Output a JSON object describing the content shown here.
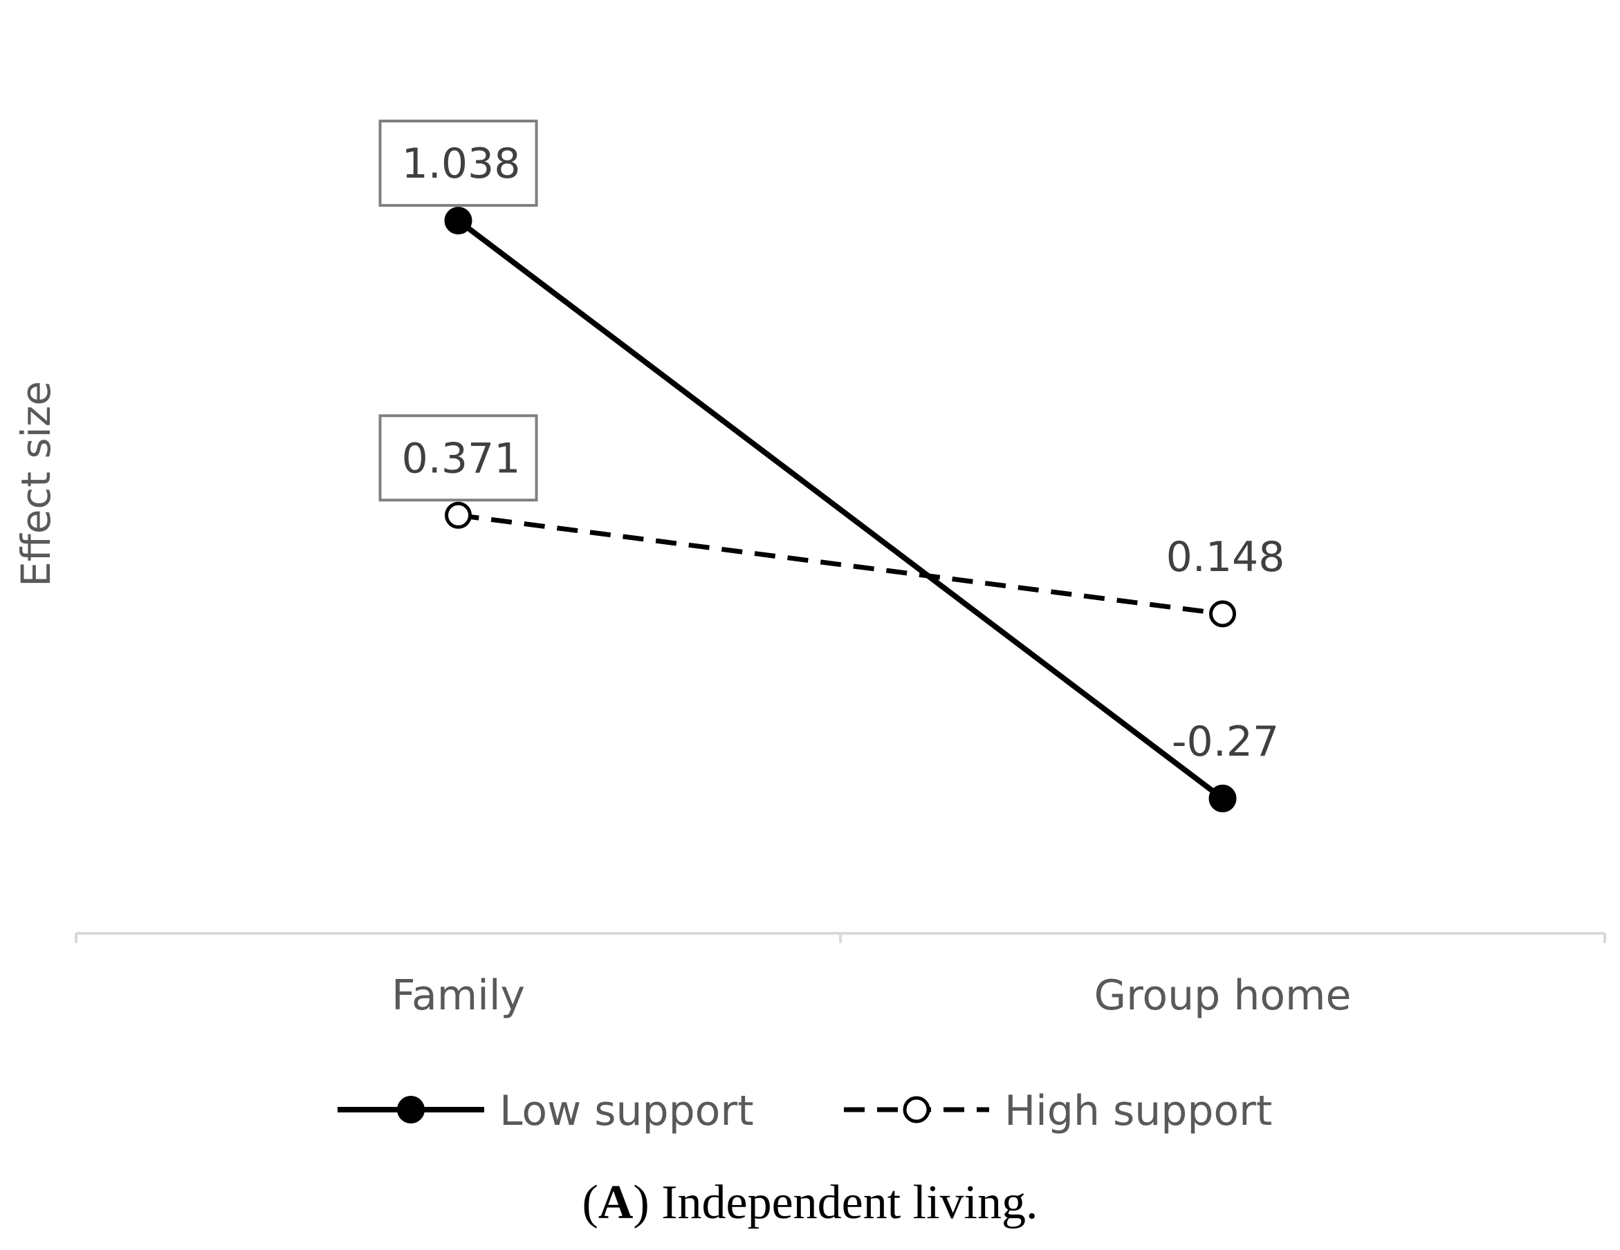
{
  "chart_data": {
    "type": "line",
    "xlabel": "",
    "ylabel": "Effect size",
    "categories": [
      "Family",
      "Group home"
    ],
    "series": [
      {
        "name": "Low support",
        "values": [
          1.038,
          -0.27
        ],
        "labels": [
          "1.038",
          "-0.27"
        ],
        "line_style": "solid",
        "marker": "filled-circle",
        "color": "#000000"
      },
      {
        "name": "High support",
        "values": [
          0.371,
          0.148
        ],
        "labels": [
          "0.371",
          "0.148"
        ],
        "line_style": "dashed",
        "marker": "open-circle",
        "color": "#000000"
      }
    ],
    "boxed_labels": [
      "Family"
    ],
    "ylim": [
      -0.4,
      1.24
    ],
    "grid": false,
    "legend_position": "bottom"
  },
  "caption": {
    "letter": "A",
    "text": "Independent living."
  }
}
